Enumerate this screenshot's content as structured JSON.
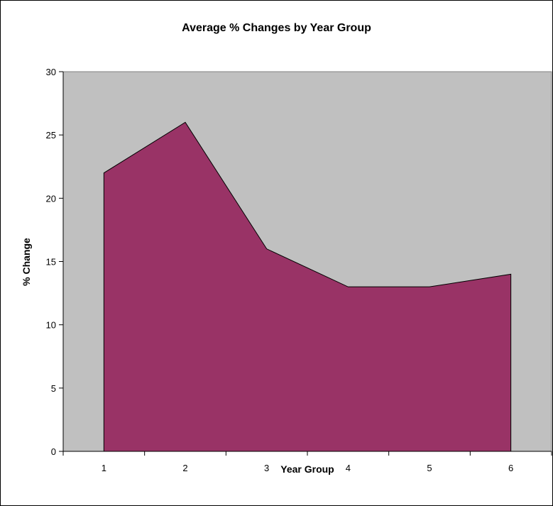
{
  "chart_data": {
    "type": "area",
    "title": "Average % Changes by Year Group",
    "xlabel": "Year Group",
    "ylabel": "% Change",
    "categories": [
      "1",
      "2",
      "3",
      "4",
      "5",
      "6"
    ],
    "values": [
      22,
      26,
      16,
      13,
      13,
      14
    ],
    "ylim": [
      0,
      30
    ],
    "yticks": [
      "0",
      "5",
      "10",
      "15",
      "20",
      "25",
      "30"
    ],
    "grid": false,
    "legend": "none",
    "colors": {
      "plot_background": "#C0C0C0",
      "area_fill": "#993366",
      "outline": "#000000"
    }
  }
}
